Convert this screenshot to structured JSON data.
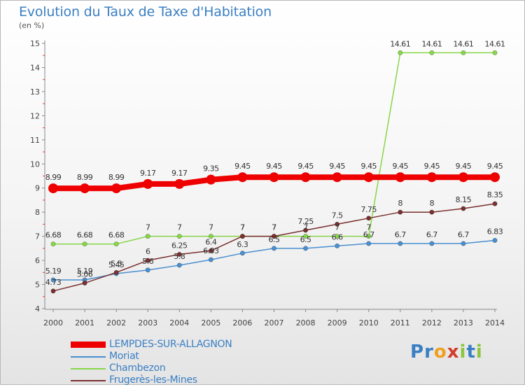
{
  "title": "Evolution du Taux de Taxe d'Habitation",
  "unit_label": "(en %)",
  "logo": {
    "letters": [
      "P",
      "r",
      "o",
      "x",
      "i",
      "t",
      "i"
    ],
    "colors": [
      "#3a7fc4",
      "#3a7fc4",
      "#f0a01e",
      "#d23c2a",
      "#8cc63f",
      "#3a7fc4",
      "#8cc63f"
    ]
  },
  "chart_data": {
    "type": "line",
    "title": "Evolution du Taux de Taxe d'Habitation",
    "ylabel": "(en %)",
    "ylim": [
      4,
      15
    ],
    "yticks": [
      4,
      5,
      6,
      7,
      8,
      9,
      10,
      11,
      12,
      13,
      14,
      15
    ],
    "grid": false,
    "legend_position": "bottom-left",
    "x": [
      "2000",
      "2001",
      "2002",
      "2003",
      "2004",
      "2005",
      "2006",
      "2007",
      "2008",
      "2009",
      "2010",
      "2011",
      "2012",
      "2013",
      "2014"
    ],
    "series": [
      {
        "name": "LEMPDES-SUR-ALLAGNON",
        "color": "#ee0000",
        "values": [
          8.99,
          8.99,
          8.99,
          9.17,
          9.17,
          9.35,
          9.45,
          9.45,
          9.45,
          9.45,
          9.45,
          9.45,
          9.45,
          9.45,
          9.45
        ],
        "labels": [
          "8.99",
          "8.99",
          "8.99",
          "9.17",
          "9.17",
          "9.35",
          "9.45",
          "9.45",
          "9.45",
          "9.45",
          "9.45",
          "9.45",
          "9.45",
          "9.45",
          "9.45"
        ]
      },
      {
        "name": "Moriat",
        "color": "#4a8fd0",
        "values": [
          5.19,
          5.19,
          5.45,
          5.6,
          5.8,
          6.03,
          6.3,
          6.5,
          6.5,
          6.6,
          6.7,
          6.7,
          6.7,
          6.7,
          6.83
        ],
        "labels": [
          "5.19",
          "5.19",
          "5.45",
          "5.6",
          "5.8",
          "6.03",
          "6.3",
          "6.5",
          "6.5",
          "6.6",
          "6.7",
          "6.7",
          "6.7",
          "6.7",
          "6.83"
        ]
      },
      {
        "name": "Chambezon",
        "color": "#88d64a",
        "values": [
          6.68,
          6.68,
          6.68,
          7,
          7,
          7,
          7,
          7,
          7,
          7,
          7,
          14.61,
          14.61,
          14.61,
          14.61
        ],
        "labels": [
          "6.68",
          "6.68",
          "6.68",
          "7",
          "7",
          "7",
          "7",
          "7",
          "7",
          "7",
          "7",
          "14.61",
          "14.61",
          "14.61",
          "14.61"
        ]
      },
      {
        "name": "Frugerès-les-Mines",
        "color": "#7a3030",
        "values": [
          4.73,
          5.06,
          5.5,
          6,
          6.25,
          6.4,
          7,
          7,
          7.25,
          7.5,
          7.75,
          8,
          8,
          8.15,
          8.35
        ],
        "labels": [
          "4.73",
          "5.06",
          "5.5",
          "6",
          "6.25",
          "6.4",
          "7",
          "7",
          "7.25",
          "7.5",
          "7.75",
          "8",
          "8",
          "8.15",
          "8.35"
        ]
      }
    ]
  }
}
